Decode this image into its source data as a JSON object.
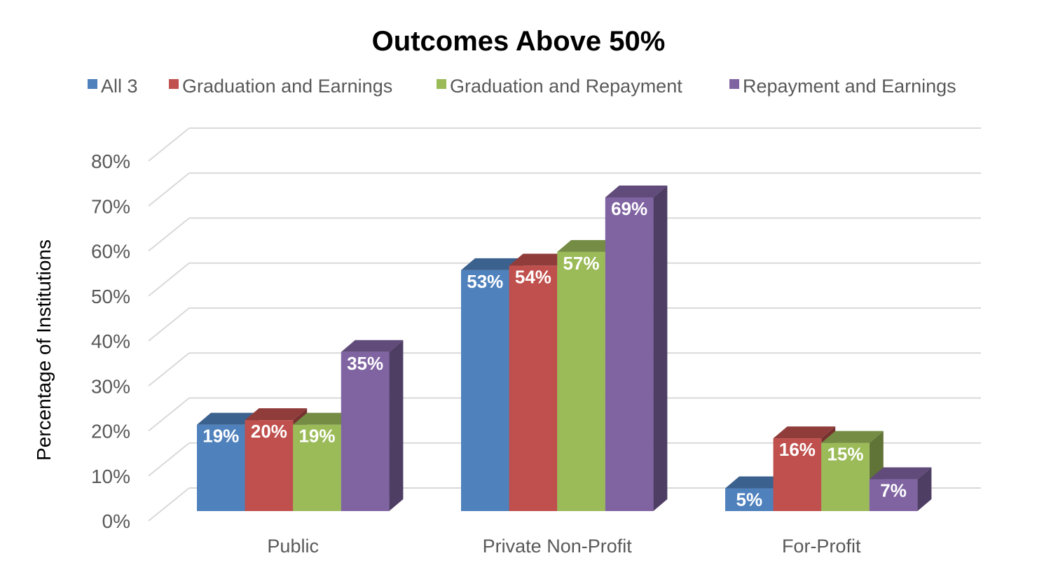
{
  "chart_data": {
    "type": "bar",
    "title": "Outcomes Above 50%",
    "xlabel": "",
    "ylabel": "Percentage of Institutions",
    "ylim": [
      0,
      80
    ],
    "yticks": [
      "0%",
      "10%",
      "20%",
      "30%",
      "40%",
      "50%",
      "60%",
      "70%",
      "80%"
    ],
    "grid": true,
    "legend_position": "top",
    "three_d": true,
    "categories": [
      "Public",
      "Private Non-Profit",
      "For-Profit"
    ],
    "series": [
      {
        "name": "All 3",
        "color": "#4f81bd",
        "values": [
          19,
          53,
          5
        ],
        "labels": [
          "19%",
          "53%",
          "5%"
        ]
      },
      {
        "name": "Graduation and Earnings",
        "color": "#c0504d",
        "values": [
          20,
          54,
          16
        ],
        "labels": [
          "20%",
          "54%",
          "16%"
        ]
      },
      {
        "name": "Graduation and Repayment",
        "color": "#9bbb59",
        "values": [
          19,
          57,
          15
        ],
        "labels": [
          "19%",
          "57%",
          "15%"
        ]
      },
      {
        "name": "Repayment and Earnings",
        "color": "#8064a2",
        "values": [
          35,
          69,
          7
        ],
        "labels": [
          "35%",
          "69%",
          "7%"
        ]
      }
    ]
  }
}
